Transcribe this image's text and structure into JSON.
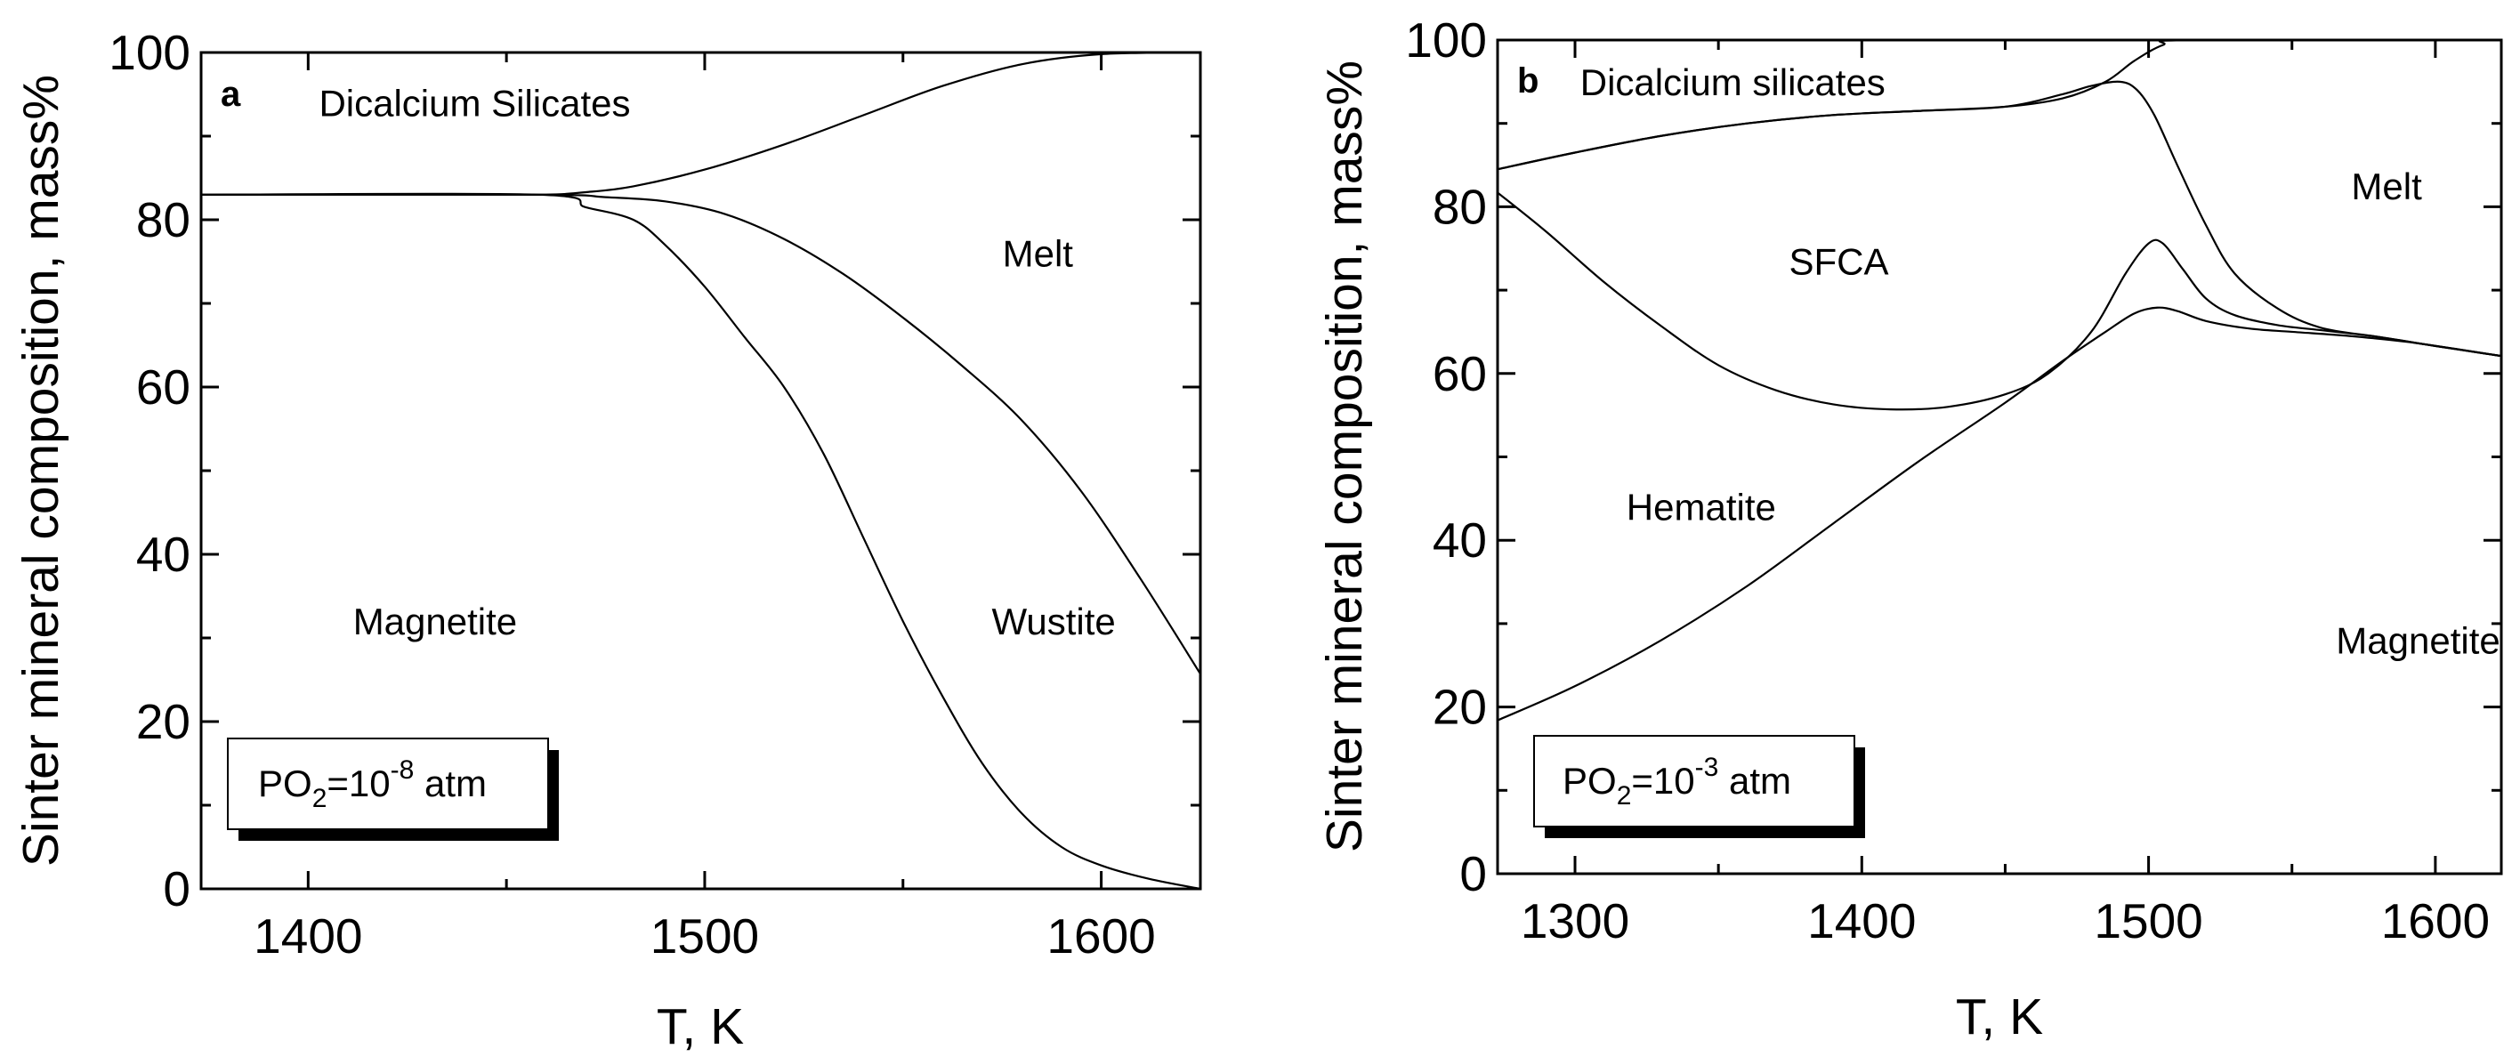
{
  "chart_data": [
    {
      "type": "area",
      "panel": "a",
      "xlabel": "T, K",
      "ylabel": "Sinter mineral composition, mass%",
      "xlim": [
        1373,
        1625
      ],
      "ylim": [
        0,
        100
      ],
      "xticks": [
        1400,
        1500,
        1600
      ],
      "yticks": [
        0,
        20,
        40,
        60,
        80,
        100
      ],
      "xtick_labels": [
        "1400",
        "1500",
        "1600"
      ],
      "ytick_labels": [
        "0",
        "20",
        "40",
        "60",
        "80",
        "100"
      ],
      "legend_box": {
        "prefix": "PO",
        "sub": "2",
        "mid": "=10",
        "sup": "-8",
        "suffix": " atm"
      },
      "region_labels": [
        {
          "text": "Dicalcium Silicates",
          "x": 1442,
          "y": 94
        },
        {
          "text": "Melt",
          "x": 1584,
          "y": 76
        },
        {
          "text": "Wustite",
          "x": 1588,
          "y": 32
        },
        {
          "text": "Magnetite",
          "x": 1432,
          "y": 32
        }
      ],
      "series": [
        {
          "name": "Dicalcium silicates / Melt boundary",
          "points": [
            [
              1373,
              83
            ],
            [
              1420,
              83
            ],
            [
              1458,
              83
            ],
            [
              1470,
              83.3
            ],
            [
              1482,
              84
            ],
            [
              1500,
              86
            ],
            [
              1520,
              89
            ],
            [
              1540,
              92.5
            ],
            [
              1560,
              96
            ],
            [
              1580,
              98.6
            ],
            [
              1600,
              99.8
            ],
            [
              1625,
              100
            ]
          ]
        },
        {
          "name": "Melt / Wustite boundary",
          "points": [
            [
              1373,
              83
            ],
            [
              1458,
              83
            ],
            [
              1475,
              82.7
            ],
            [
              1490,
              82.2
            ],
            [
              1505,
              80.7
            ],
            [
              1520,
              77.7
            ],
            [
              1535,
              73.5
            ],
            [
              1550,
              68.3
            ],
            [
              1565,
              62.5
            ],
            [
              1580,
              56
            ],
            [
              1595,
              47.5
            ],
            [
              1610,
              37
            ],
            [
              1625,
              25.7
            ]
          ]
        },
        {
          "name": "Wustite / Magnetite boundary",
          "points": [
            [
              1373,
              83
            ],
            [
              1458,
              83
            ],
            [
              1470,
              81.5
            ],
            [
              1482,
              80
            ],
            [
              1490,
              77
            ],
            [
              1500,
              72
            ],
            [
              1510,
              66
            ],
            [
              1520,
              60
            ],
            [
              1530,
              52
            ],
            [
              1540,
              42
            ],
            [
              1550,
              32
            ],
            [
              1560,
              23
            ],
            [
              1570,
              15
            ],
            [
              1580,
              9
            ],
            [
              1590,
              5
            ],
            [
              1600,
              2.8
            ],
            [
              1612,
              1.2
            ],
            [
              1625,
              0
            ]
          ]
        }
      ]
    },
    {
      "type": "area",
      "panel": "b",
      "xlabel": "T, K",
      "ylabel": "Sinter mineral composition, mass%",
      "xlim": [
        1273,
        1623
      ],
      "ylim": [
        0,
        100
      ],
      "xticks": [
        1300,
        1400,
        1500,
        1600
      ],
      "yticks": [
        0,
        20,
        40,
        60,
        80,
        100
      ],
      "xtick_labels": [
        "1300",
        "1400",
        "1500",
        "1600"
      ],
      "ytick_labels": [
        "0",
        "20",
        "40",
        "60",
        "80",
        "100"
      ],
      "legend_box": {
        "prefix": "PO",
        "sub": "2",
        "mid": "=10",
        "sup": "-3",
        "suffix": " atm"
      },
      "region_labels": [
        {
          "text": "Dicalcium silicates",
          "x": 1355,
          "y": 95
        },
        {
          "text": "Melt",
          "x": 1583,
          "y": 82.5
        },
        {
          "text": "SFCA",
          "x": 1392,
          "y": 73.5
        },
        {
          "text": "Hematite",
          "x": 1344,
          "y": 44
        },
        {
          "text": "Magnetite",
          "x": 1594,
          "y": 28
        }
      ]
    }
  ],
  "panel_b_series": [
    {
      "name": "Dicalcium silicates upper boundary",
      "points": [
        [
          1273,
          84.5
        ],
        [
          1300,
          86.5
        ],
        [
          1330,
          88.5
        ],
        [
          1360,
          90
        ],
        [
          1390,
          91
        ],
        [
          1420,
          91.5
        ],
        [
          1450,
          92
        ],
        [
          1470,
          93
        ],
        [
          1485,
          95
        ],
        [
          1495,
          97.5
        ],
        [
          1505,
          99.4
        ],
        [
          1515,
          100
        ],
        [
          1623,
          100
        ]
      ]
    },
    {
      "name": "Dicalcium silicates / SFCA & Melt boundary",
      "points": [
        [
          1273,
          84.5
        ],
        [
          1300,
          86.5
        ],
        [
          1330,
          88.5
        ],
        [
          1360,
          90
        ],
        [
          1390,
          91
        ],
        [
          1420,
          91.5
        ],
        [
          1450,
          92
        ],
        [
          1470,
          93.5
        ],
        [
          1480,
          94.5
        ],
        [
          1490,
          95
        ],
        [
          1496,
          94
        ],
        [
          1502,
          91
        ],
        [
          1510,
          85
        ],
        [
          1520,
          77.8
        ],
        [
          1530,
          72
        ],
        [
          1545,
          67.8
        ],
        [
          1560,
          65.5
        ],
        [
          1580,
          64.4
        ],
        [
          1600,
          63.3
        ],
        [
          1623,
          62.1
        ]
      ]
    },
    {
      "name": "SFCA / Hematite boundary",
      "points": [
        [
          1273,
          81.7
        ],
        [
          1290,
          77
        ],
        [
          1310,
          71
        ],
        [
          1330,
          65.7
        ],
        [
          1350,
          61
        ],
        [
          1370,
          58
        ],
        [
          1390,
          56.3
        ],
        [
          1410,
          55.7
        ],
        [
          1430,
          56
        ],
        [
          1450,
          57.5
        ],
        [
          1465,
          60
        ],
        [
          1480,
          65
        ],
        [
          1492,
          72
        ],
        [
          1500,
          75.6
        ],
        [
          1505,
          75.6
        ],
        [
          1512,
          72.5
        ],
        [
          1520,
          69
        ],
        [
          1530,
          67
        ],
        [
          1545,
          65.8
        ],
        [
          1560,
          65.2
        ],
        [
          1580,
          64.4
        ],
        [
          1600,
          63.3
        ],
        [
          1623,
          62.1
        ]
      ]
    },
    {
      "name": "Hematite / Magnetite boundary",
      "points": [
        [
          1273,
          18.4
        ],
        [
          1300,
          22.5
        ],
        [
          1330,
          28
        ],
        [
          1360,
          34.5
        ],
        [
          1390,
          42
        ],
        [
          1420,
          49.5
        ],
        [
          1450,
          56.5
        ],
        [
          1470,
          61.5
        ],
        [
          1485,
          65
        ],
        [
          1495,
          67.2
        ],
        [
          1503,
          67.9
        ],
        [
          1510,
          67.5
        ],
        [
          1520,
          66.3
        ],
        [
          1535,
          65.4
        ],
        [
          1550,
          65
        ],
        [
          1570,
          64.5
        ],
        [
          1590,
          63.8
        ],
        [
          1610,
          62.8
        ],
        [
          1623,
          62.1
        ]
      ]
    }
  ]
}
